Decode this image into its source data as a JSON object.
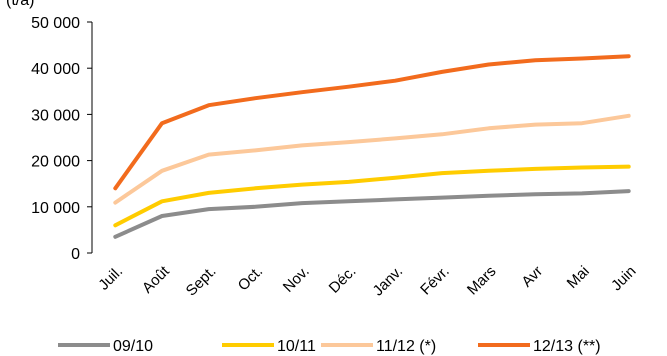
{
  "chart_data": {
    "type": "line",
    "unit_label": "(t/a)",
    "categories": [
      "Juil.",
      "Août",
      "Sept.",
      "Oct.",
      "Nov.",
      "Déc.",
      "Janv.",
      "Févr.",
      "Mars",
      "Avr",
      "Mai",
      "Juin"
    ],
    "ylim": [
      0,
      50000
    ],
    "yticks": [
      0,
      10000,
      20000,
      30000,
      40000,
      50000
    ],
    "ytick_labels": [
      "0",
      "10 000",
      "20 000",
      "30 000",
      "40 000",
      "50 000"
    ],
    "grid": false,
    "legend_position": "bottom",
    "series": [
      {
        "name": "09/10",
        "color": "#8c8c8c",
        "values": [
          3500,
          8000,
          9500,
          10000,
          10800,
          11200,
          11600,
          12000,
          12400,
          12700,
          12900,
          13400
        ]
      },
      {
        "name": "10/11",
        "color": "#ffcc00",
        "values": [
          6000,
          11200,
          13000,
          14000,
          14800,
          15400,
          16300,
          17300,
          17800,
          18200,
          18500,
          18700
        ]
      },
      {
        "name": "11/12 (*)",
        "color": "#fcc89a",
        "values": [
          10900,
          17800,
          21300,
          22200,
          23300,
          24000,
          24800,
          25700,
          27000,
          27800,
          28100,
          29700
        ]
      },
      {
        "name": "12/13 (**)",
        "color": "#f26b1d",
        "values": [
          14000,
          28100,
          32000,
          33500,
          34800,
          36000,
          37300,
          39200,
          40800,
          41700,
          42100,
          42600
        ]
      }
    ]
  }
}
